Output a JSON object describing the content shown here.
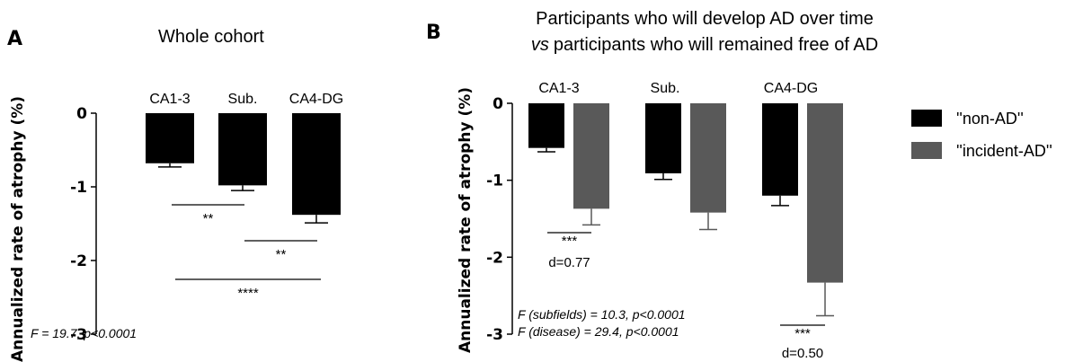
{
  "chart_data": [
    {
      "panel": "A",
      "type": "bar",
      "title": "Whole cohort",
      "ylabel": "Annualized rate of atrophy (%)",
      "ylim": [
        -3,
        0
      ],
      "yticks": [
        "0",
        "-1",
        "-2",
        "-3"
      ],
      "categories": [
        "CA1-3",
        "Sub.",
        "CA4-DG"
      ],
      "series": [
        {
          "values": [
            -0.68,
            -0.98,
            -1.38
          ],
          "errors": [
            0.05,
            0.07,
            0.11
          ],
          "color": "#000000"
        }
      ],
      "significance": [
        {
          "from": "CA1-3",
          "to": "Sub.",
          "label": "**"
        },
        {
          "from": "Sub.",
          "to": "CA4-DG",
          "label": "**"
        },
        {
          "from": "CA1-3",
          "to": "CA4-DG",
          "label": "****"
        }
      ],
      "annotation": "F = 19.7, p<0.0001"
    },
    {
      "panel": "B",
      "type": "bar",
      "title": "Participants who will develop AD over time",
      "subtitle_italic": "vs",
      "subtitle": "participants who will remained free of AD",
      "ylabel": "Annualized rate of atrophy (%)",
      "ylim": [
        -3,
        0
      ],
      "yticks": [
        "0",
        "-1",
        "-2",
        "-3"
      ],
      "categories": [
        "CA1-3",
        "Sub.",
        "CA4-DG"
      ],
      "series": [
        {
          "name": "''non-AD''",
          "values": [
            -0.58,
            -0.91,
            -1.2
          ],
          "errors": [
            0.05,
            0.08,
            0.13
          ],
          "color": "#000000"
        },
        {
          "name": "''incident-AD''",
          "values": [
            -1.37,
            -1.42,
            -2.33
          ],
          "errors": [
            0.21,
            0.22,
            0.43
          ],
          "color": "#595959"
        }
      ],
      "significance": [
        {
          "category": "CA1-3",
          "label": "***",
          "effect": "d=0.77"
        },
        {
          "category": "CA4-DG",
          "label": "***",
          "effect": "d=0.50"
        }
      ],
      "annotations": [
        "F (subfields) = 10.3, p<0.0001",
        "F (disease) = 29.4, p<0.0001"
      ],
      "legend_position": "right"
    }
  ]
}
